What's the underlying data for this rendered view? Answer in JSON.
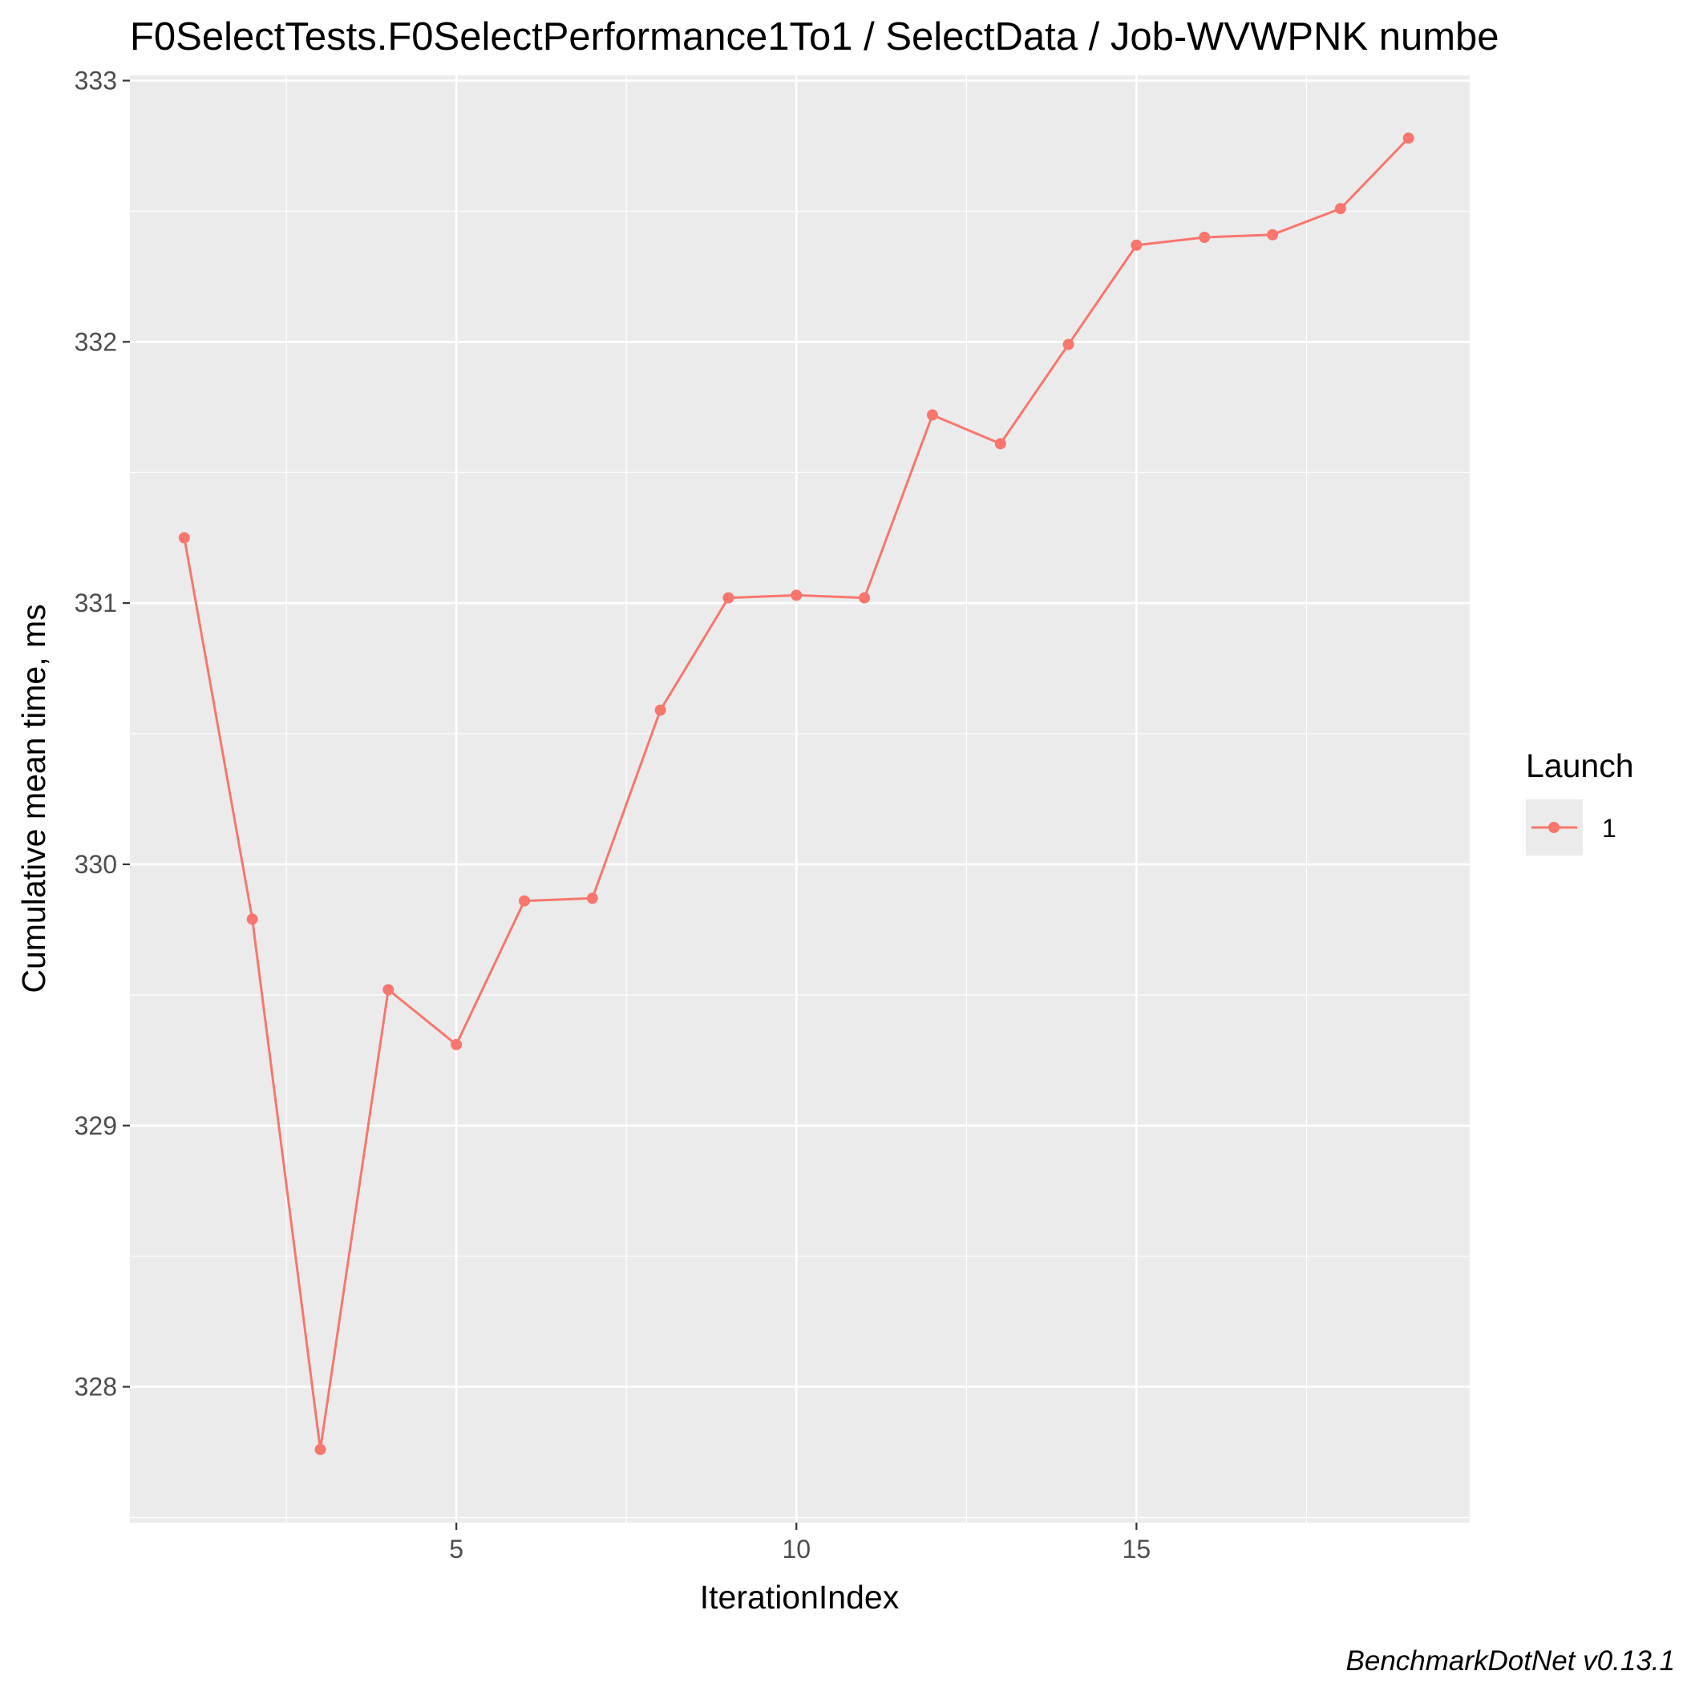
{
  "chart_data": {
    "type": "line",
    "title": "F0SelectTests.F0SelectPerformance1To1 / SelectData / Job-WVWPNK numbe",
    "xlabel": "IterationIndex",
    "ylabel": "Cumulative mean time, ms",
    "caption": "BenchmarkDotNet v0.13.1",
    "x_ticks": [
      "5",
      "10",
      "15"
    ],
    "y_ticks": [
      "328",
      "329",
      "330",
      "331",
      "332",
      "333"
    ],
    "xlim": [
      0.2,
      19.9
    ],
    "ylim": [
      327.48,
      333.02
    ],
    "grid": true,
    "legend": {
      "title": "Launch",
      "position": "right",
      "entries": [
        {
          "label": "1",
          "color": "#F8766D"
        }
      ]
    },
    "series": [
      {
        "name": "1",
        "color": "#F8766D",
        "x": [
          1,
          2,
          3,
          4,
          5,
          6,
          7,
          8,
          9,
          10,
          11,
          12,
          13,
          14,
          15,
          16,
          17,
          18,
          19
        ],
        "y": [
          331.25,
          329.79,
          327.76,
          329.52,
          329.31,
          329.86,
          329.87,
          330.59,
          331.02,
          331.03,
          331.02,
          331.72,
          331.61,
          331.99,
          332.37,
          332.4,
          332.41,
          332.51,
          332.78
        ]
      }
    ]
  }
}
